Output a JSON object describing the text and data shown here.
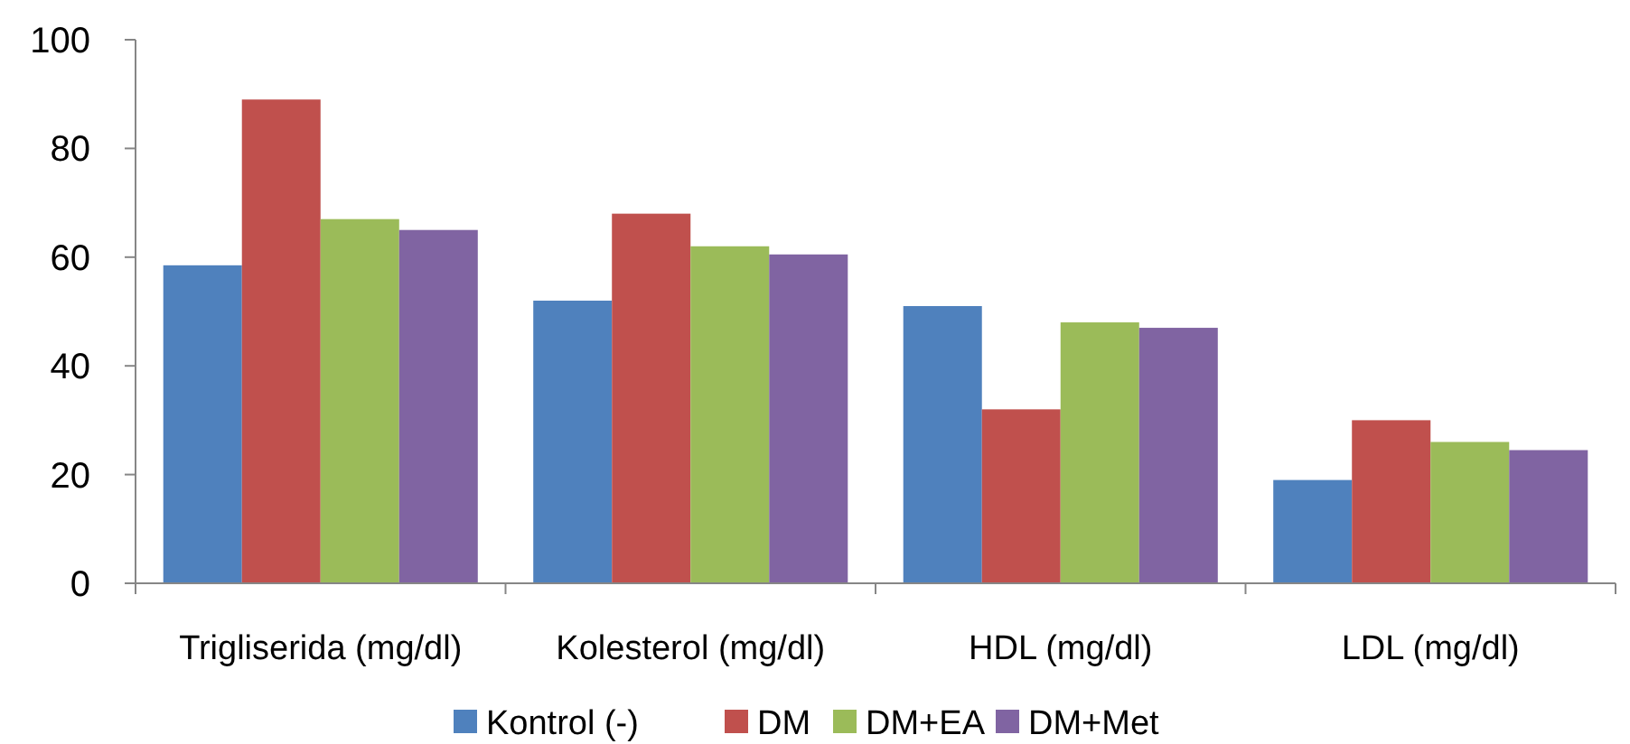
{
  "chart_data": {
    "type": "bar",
    "categories": [
      "Trigliserida (mg/dl)",
      "Kolesterol (mg/dl)",
      "HDL (mg/dl)",
      "LDL (mg/dl)"
    ],
    "series": [
      {
        "name": "Kontrol (-)",
        "color": "#4f81bd",
        "values": [
          58.5,
          52,
          51,
          19
        ]
      },
      {
        "name": "DM",
        "color": "#c0504d",
        "values": [
          89,
          68,
          32,
          30
        ]
      },
      {
        "name": "DM+EA",
        "color": "#9bbb59",
        "values": [
          67,
          62,
          48,
          26
        ]
      },
      {
        "name": "DM+Met",
        "color": "#8064a2",
        "values": [
          65,
          60.5,
          47,
          24.5
        ]
      }
    ],
    "ylim": [
      0,
      100
    ],
    "yticks": [
      0,
      20,
      40,
      60,
      80,
      100
    ],
    "grid": false,
    "legend": "bottom"
  }
}
